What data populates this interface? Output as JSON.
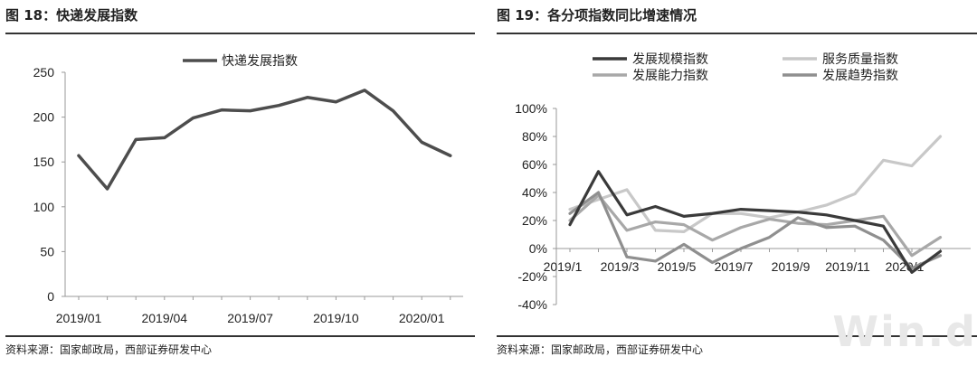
{
  "left": {
    "title": "图 18：快递发展指数",
    "source": "资料来源：国家邮政局，西部证券研发中心"
  },
  "right": {
    "title": "图 19：各分项指数同比增速情况",
    "source": "资料来源：国家邮政局，西部证券研发中心"
  },
  "watermark": "Win.d",
  "chart_data": [
    {
      "type": "line",
      "title": "",
      "xlabel": "",
      "ylabel": "",
      "x": [
        "2019/01",
        "2019/02",
        "2019/03",
        "2019/04",
        "2019/05",
        "2019/06",
        "2019/07",
        "2019/08",
        "2019/09",
        "2019/10",
        "2019/11",
        "2019/12",
        "2020/01",
        "2020/02"
      ],
      "x_ticks": [
        "2019/01",
        "2019/04",
        "2019/07",
        "2019/10",
        "2020/01"
      ],
      "ylim": [
        0,
        250
      ],
      "y_ticks": [
        0,
        50,
        100,
        150,
        200,
        250
      ],
      "grid": false,
      "legend": "top-center",
      "series": [
        {
          "name": "快递发展指数",
          "color": "#4d4d4d",
          "values": [
            157,
            120,
            175,
            177,
            199,
            208,
            207,
            213,
            222,
            217,
            230,
            207,
            172,
            157
          ]
        }
      ]
    },
    {
      "type": "line",
      "title": "",
      "xlabel": "",
      "ylabel": "",
      "x": [
        "2019/1",
        "2019/2",
        "2019/3",
        "2019/4",
        "2019/5",
        "2019/6",
        "2019/7",
        "2019/8",
        "2019/9",
        "2019/10",
        "2019/11",
        "2019/12",
        "2020/1",
        "2020/2"
      ],
      "x_ticks": [
        "2019/1",
        "2019/3",
        "2019/5",
        "2019/7",
        "2019/9",
        "2019/11",
        "2020/1"
      ],
      "ylim": [
        -40,
        100
      ],
      "y_ticks": [
        "100%",
        "80%",
        "60%",
        "40%",
        "20%",
        "0%",
        "-20%",
        "-40%"
      ],
      "y_tick_values": [
        100,
        80,
        60,
        40,
        20,
        0,
        -20,
        -40
      ],
      "grid": false,
      "legend": "top",
      "series": [
        {
          "name": "发展规模指数",
          "color": "#3a3a3a",
          "values": [
            17,
            55,
            24,
            30,
            23,
            25,
            28,
            27,
            26,
            24,
            20,
            16,
            -17,
            -2
          ]
        },
        {
          "name": "服务质量指数",
          "color": "#c8c8c8",
          "values": [
            28,
            35,
            42,
            13,
            12,
            25,
            25,
            22,
            26,
            31,
            39,
            63,
            59,
            80
          ]
        },
        {
          "name": "发展能力指数",
          "color": "#a8a8a8",
          "values": [
            20,
            38,
            13,
            19,
            17,
            6,
            15,
            21,
            18,
            17,
            20,
            23,
            -5,
            8
          ]
        },
        {
          "name": "发展趋势指数",
          "color": "#8f8f8f",
          "values": [
            25,
            40,
            -6,
            -9,
            3,
            -10,
            0,
            8,
            22,
            15,
            16,
            6,
            -14,
            -5
          ]
        }
      ]
    }
  ]
}
